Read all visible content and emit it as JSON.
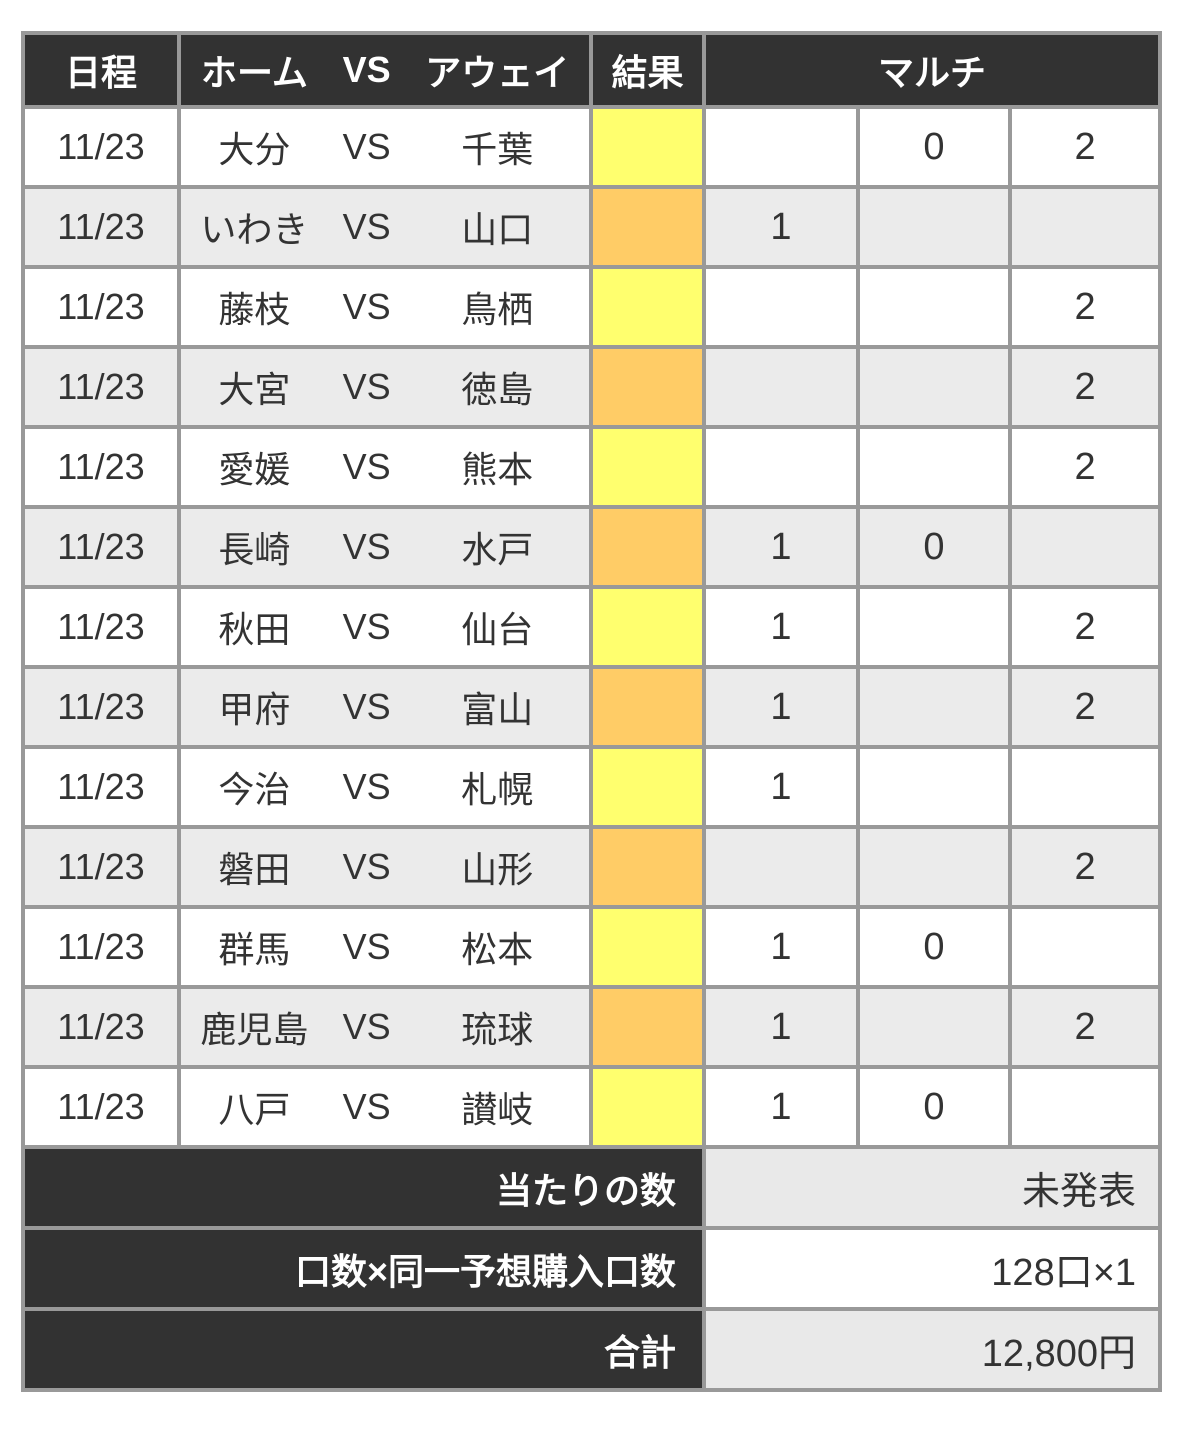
{
  "table": {
    "headers": {
      "date": "日程",
      "home": "ホーム",
      "away": "アウェイ",
      "result": "結果",
      "multi": "マルチ"
    },
    "vs_label": "VS",
    "colors": {
      "yellow": "#ffff6e",
      "orange": "#ffcc66",
      "header_bg": "#323232",
      "border": "#999999",
      "alt_row_bg": "#ebebeb"
    },
    "rows": [
      {
        "date": "11/23",
        "home": "大分",
        "away": "千葉",
        "result_color": "yellow",
        "multi": [
          "",
          "0",
          "2"
        ]
      },
      {
        "date": "11/23",
        "home": "いわき",
        "away": "山口",
        "result_color": "orange",
        "multi": [
          "1",
          "",
          ""
        ]
      },
      {
        "date": "11/23",
        "home": "藤枝",
        "away": "鳥栖",
        "result_color": "yellow",
        "multi": [
          "",
          "",
          "2"
        ]
      },
      {
        "date": "11/23",
        "home": "大宮",
        "away": "徳島",
        "result_color": "orange",
        "multi": [
          "",
          "",
          "2"
        ]
      },
      {
        "date": "11/23",
        "home": "愛媛",
        "away": "熊本",
        "result_color": "yellow",
        "multi": [
          "",
          "",
          "2"
        ]
      },
      {
        "date": "11/23",
        "home": "長崎",
        "away": "水戸",
        "result_color": "orange",
        "multi": [
          "1",
          "0",
          ""
        ]
      },
      {
        "date": "11/23",
        "home": "秋田",
        "away": "仙台",
        "result_color": "yellow",
        "multi": [
          "1",
          "",
          "2"
        ]
      },
      {
        "date": "11/23",
        "home": "甲府",
        "away": "富山",
        "result_color": "orange",
        "multi": [
          "1",
          "",
          "2"
        ]
      },
      {
        "date": "11/23",
        "home": "今治",
        "away": "札幌",
        "result_color": "yellow",
        "multi": [
          "1",
          "",
          ""
        ]
      },
      {
        "date": "11/23",
        "home": "磐田",
        "away": "山形",
        "result_color": "orange",
        "multi": [
          "",
          "",
          "2"
        ]
      },
      {
        "date": "11/23",
        "home": "群馬",
        "away": "松本",
        "result_color": "yellow",
        "multi": [
          "1",
          "0",
          ""
        ]
      },
      {
        "date": "11/23",
        "home": "鹿児島",
        "away": "琉球",
        "result_color": "orange",
        "multi": [
          "1",
          "",
          "2"
        ]
      },
      {
        "date": "11/23",
        "home": "八戸",
        "away": "讃岐",
        "result_color": "yellow",
        "multi": [
          "1",
          "0",
          ""
        ]
      }
    ],
    "summary": [
      {
        "label": "当たりの数",
        "value": "未発表",
        "shaded": true
      },
      {
        "label": "口数×同一予想購入口数",
        "value": "128口×1",
        "shaded": false
      },
      {
        "label": "合計",
        "value": "12,800円",
        "shaded": true
      }
    ]
  }
}
